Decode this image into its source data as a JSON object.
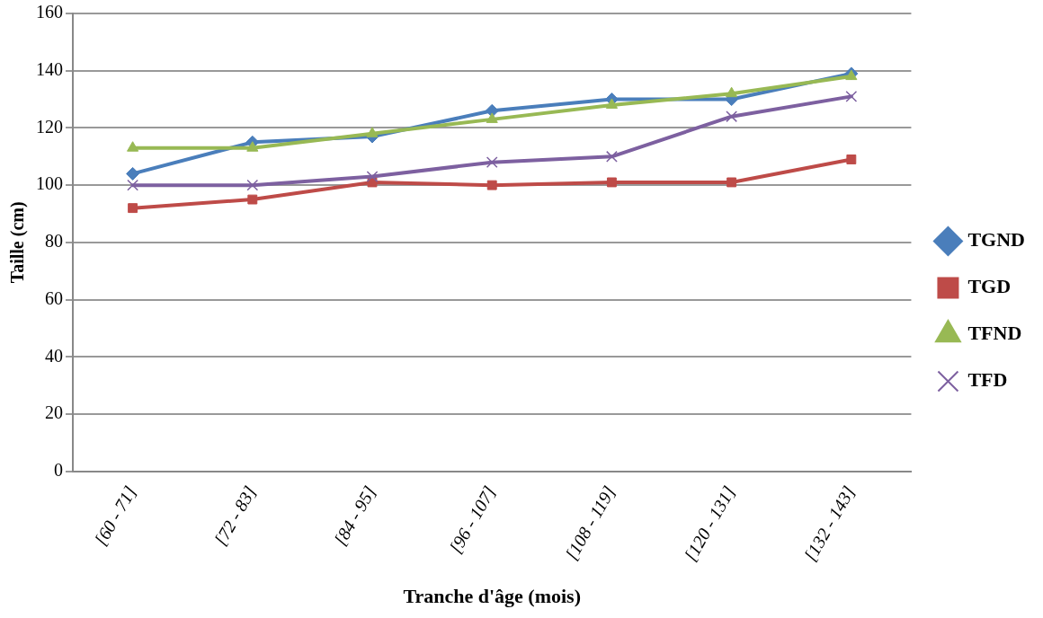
{
  "chart_data": {
    "type": "line",
    "xlabel": "Tranche d'âge (mois)",
    "ylabel": "Taille (cm)",
    "categories": [
      "[60 - 71]",
      "[72 - 83]",
      "[84 - 95]",
      "[96 - 107]",
      "[108 - 119]",
      "[120 - 131]",
      "[132 - 143]"
    ],
    "ylim": [
      0,
      160
    ],
    "yticks": [
      0,
      20,
      40,
      60,
      80,
      100,
      120,
      140,
      160
    ],
    "grid": "y",
    "legend": "right",
    "series": [
      {
        "name": "TGND",
        "color": "#4a7ebb",
        "marker": "diamond",
        "values": [
          104,
          115,
          117,
          126,
          130,
          130,
          139
        ]
      },
      {
        "name": "TGD",
        "color": "#be4b48",
        "marker": "square",
        "values": [
          92,
          95,
          101,
          100,
          101,
          101,
          109
        ]
      },
      {
        "name": "TFND",
        "color": "#98b954",
        "marker": "triangle",
        "values": [
          113,
          113,
          118,
          123,
          128,
          132,
          138
        ]
      },
      {
        "name": "TFD",
        "color": "#7d60a0",
        "marker": "cross",
        "values": [
          100,
          100,
          103,
          108,
          110,
          124,
          131
        ]
      }
    ]
  }
}
